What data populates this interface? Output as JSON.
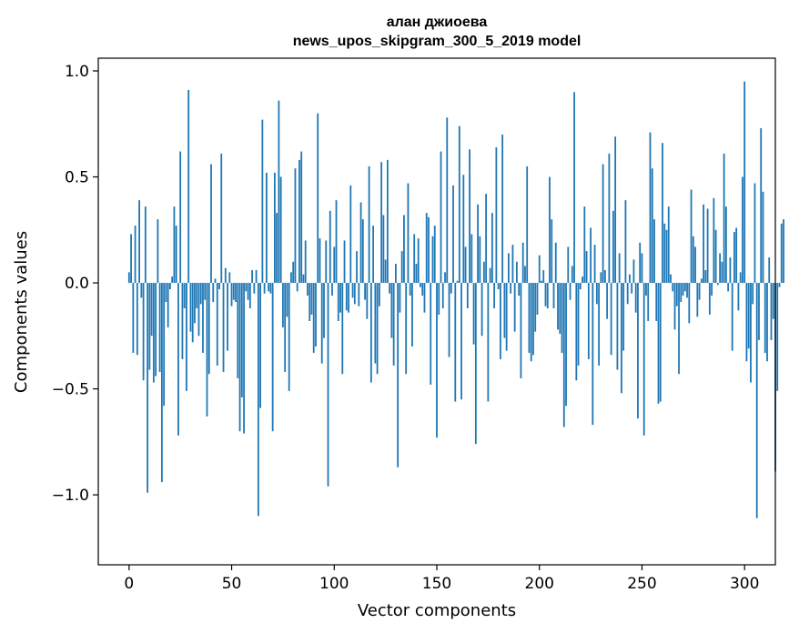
{
  "chart_data": {
    "type": "bar",
    "title": "алан джиоева",
    "subtitle": "news_upos_skipgram_300_5_2019 model",
    "xlabel": "Vector components",
    "ylabel": "Components values",
    "xlim": [
      -15,
      315
    ],
    "ylim": [
      -1.33,
      1.06
    ],
    "xticks": [
      0,
      50,
      100,
      150,
      200,
      250,
      300
    ],
    "xtick_labels": [
      "0",
      "50",
      "100",
      "150",
      "200",
      "250",
      "300"
    ],
    "yticks": [
      -1.0,
      -0.5,
      0.0,
      0.5,
      1.0
    ],
    "ytick_labels": [
      "−1.0",
      "−0.5",
      "0.0",
      "0.5",
      "1.0"
    ],
    "grid": false,
    "bar_color": "#1f77b4",
    "values": [
      0.05,
      0.23,
      -0.33,
      0.27,
      -0.34,
      0.39,
      -0.07,
      -0.46,
      0.36,
      -0.99,
      -0.41,
      -0.25,
      -0.47,
      -0.44,
      0.3,
      -0.42,
      -0.94,
      -0.58,
      -0.09,
      -0.21,
      -0.03,
      0.03,
      0.36,
      0.27,
      -0.72,
      0.62,
      -0.36,
      -0.12,
      -0.51,
      0.91,
      -0.23,
      -0.28,
      -0.19,
      -0.12,
      -0.25,
      -0.1,
      -0.33,
      -0.08,
      -0.63,
      -0.43,
      0.56,
      -0.09,
      0.02,
      -0.39,
      -0.03,
      0.61,
      -0.42,
      0.07,
      -0.32,
      0.05,
      -0.11,
      -0.08,
      -0.09,
      -0.45,
      -0.7,
      -0.54,
      -0.71,
      -0.04,
      -0.08,
      -0.12,
      0.06,
      -0.05,
      0.06,
      -1.1,
      -0.59,
      0.77,
      -0.05,
      0.52,
      -0.04,
      -0.05,
      -0.7,
      0.52,
      0.33,
      0.86,
      0.5,
      -0.21,
      -0.42,
      -0.16,
      -0.51,
      0.05,
      0.1,
      0.54,
      -0.04,
      0.58,
      0.62,
      0.04,
      0.2,
      -0.06,
      -0.18,
      -0.15,
      -0.33,
      -0.3,
      0.8,
      0.21,
      -0.38,
      -0.26,
      0.2,
      -0.96,
      0.34,
      -0.06,
      0.17,
      0.39,
      -0.18,
      -0.14,
      -0.43,
      0.2,
      -0.13,
      -0.14,
      0.46,
      -0.07,
      -0.1,
      0.15,
      -0.11,
      0.38,
      0.3,
      -0.08,
      -0.17,
      0.55,
      -0.47,
      0.27,
      -0.38,
      -0.43,
      -0.11,
      0.57,
      0.32,
      0.11,
      0.58,
      -0.05,
      -0.26,
      -0.39,
      0.09,
      -0.87,
      -0.14,
      0.15,
      0.32,
      -0.43,
      0.47,
      -0.06,
      -0.3,
      0.23,
      0.09,
      0.21,
      -0.02,
      -0.06,
      -0.14,
      0.33,
      0.31,
      -0.48,
      0.22,
      0.27,
      -0.73,
      -0.15,
      0.62,
      -0.12,
      0.05,
      0.78,
      -0.35,
      -0.05,
      0.46,
      -0.56,
      0.01,
      0.74,
      -0.55,
      0.51,
      0.17,
      -0.12,
      0.63,
      0.23,
      -0.29,
      -0.76,
      0.37,
      0.22,
      -0.25,
      0.1,
      0.42,
      -0.56,
      0.07,
      0.33,
      -0.12,
      0.64,
      -0.03,
      -0.36,
      0.7,
      -0.26,
      -0.32,
      0.14,
      -0.05,
      0.18,
      -0.23,
      0.1,
      -0.06,
      -0.45,
      0.19,
      0.08,
      0.55,
      -0.33,
      -0.37,
      -0.34,
      -0.23,
      -0.15,
      0.13,
      0.01,
      0.06,
      -0.11,
      -0.12,
      0.5,
      0.3,
      -0.12,
      0.19,
      -0.22,
      -0.24,
      -0.33,
      -0.68,
      -0.58,
      0.17,
      -0.08,
      0.08,
      0.9,
      -0.46,
      -0.39,
      -0.03,
      0.03,
      0.36,
      0.15,
      -0.36,
      0.26,
      -0.67,
      0.18,
      -0.1,
      -0.39,
      0.05,
      0.56,
      0.06,
      -0.17,
      0.61,
      -0.34,
      0.34,
      0.69,
      -0.41,
      0.14,
      -0.52,
      -0.32,
      0.39,
      -0.1,
      0.04,
      -0.05,
      0.11,
      -0.14,
      -0.64,
      0.19,
      0.14,
      -0.72,
      -0.06,
      -0.18,
      0.71,
      0.54,
      0.3,
      -0.18,
      -0.57,
      -0.56,
      0.66,
      0.28,
      0.25,
      0.36,
      0.04,
      -0.04,
      -0.22,
      -0.11,
      -0.43,
      -0.09,
      -0.06,
      -0.04,
      -0.07,
      -0.19,
      0.44,
      0.22,
      0.17,
      -0.16,
      -0.08,
      0.02,
      0.37,
      0.06,
      0.35,
      -0.15,
      -0.06,
      0.4,
      0.25,
      -0.01,
      0.14,
      0.1,
      0.61,
      0.36,
      -0.04,
      0.12,
      -0.32,
      0.24,
      0.26,
      -0.13,
      0.05,
      0.5,
      0.95,
      -0.37,
      -0.31,
      -0.47,
      -0.1,
      0.47,
      -1.11,
      -0.27,
      0.73,
      0.43,
      -0.33,
      -0.37,
      0.12,
      -0.27,
      -0.17,
      -0.89,
      -0.51,
      -0.02,
      0.28,
      0.3
    ]
  }
}
